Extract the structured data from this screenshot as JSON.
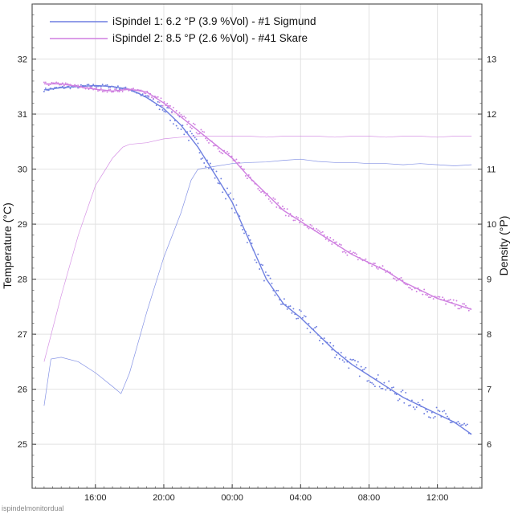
{
  "chart_data": {
    "type": "line",
    "x_unit": "hours",
    "x_ticks": [
      {
        "value": 16,
        "label": "16:00"
      },
      {
        "value": 20,
        "label": "20:00"
      },
      {
        "value": 24,
        "label": "00:00"
      },
      {
        "value": 28,
        "label": "04:00"
      },
      {
        "value": 32,
        "label": "08:00"
      },
      {
        "value": 36,
        "label": "12:00"
      }
    ],
    "xlim": [
      12.3,
      38.6
    ],
    "left_axis": {
      "label": "Temperature (°C)",
      "ylim": [
        24.2,
        33.0
      ],
      "ticks": [
        25,
        26,
        27,
        28,
        29,
        30,
        31,
        32
      ]
    },
    "right_axis": {
      "label": "Density (°P)",
      "ylim": [
        5.2,
        14.0
      ],
      "ticks": [
        6,
        7,
        8,
        9,
        10,
        11,
        12,
        13
      ]
    },
    "grid": true,
    "legend_position": "top-left",
    "series": [
      {
        "name": "iSpindel 1: 6.2 °P (3.9 %Vol) - #1 Sigmund",
        "color": "#6e7fe0",
        "temperature": [
          [
            13.0,
            31.44
          ],
          [
            14.0,
            31.48
          ],
          [
            15.0,
            31.5
          ],
          [
            16.0,
            31.52
          ],
          [
            17.0,
            31.5
          ],
          [
            18.0,
            31.45
          ],
          [
            18.5,
            31.38
          ],
          [
            19.0,
            31.3
          ],
          [
            20.0,
            31.1
          ],
          [
            21.0,
            30.8
          ],
          [
            22.0,
            30.4
          ],
          [
            23.0,
            29.9
          ],
          [
            24.0,
            29.4
          ],
          [
            25.0,
            28.7
          ],
          [
            26.0,
            28.0
          ],
          [
            27.0,
            27.55
          ],
          [
            28.0,
            27.3
          ],
          [
            29.0,
            27.0
          ],
          [
            30.0,
            26.7
          ],
          [
            31.0,
            26.45
          ],
          [
            32.0,
            26.25
          ],
          [
            33.0,
            26.05
          ],
          [
            34.0,
            25.85
          ],
          [
            35.0,
            25.7
          ],
          [
            36.0,
            25.55
          ],
          [
            37.0,
            25.4
          ],
          [
            38.0,
            25.18
          ]
        ],
        "density": [
          [
            13.0,
            6.7
          ],
          [
            13.4,
            7.55
          ],
          [
            14.0,
            7.58
          ],
          [
            15.0,
            7.5
          ],
          [
            16.0,
            7.3
          ],
          [
            17.0,
            7.05
          ],
          [
            17.5,
            6.92
          ],
          [
            18.0,
            7.3
          ],
          [
            19.0,
            8.4
          ],
          [
            20.0,
            9.4
          ],
          [
            21.0,
            10.2
          ],
          [
            21.6,
            10.8
          ],
          [
            22.0,
            11.0
          ],
          [
            23.0,
            11.05
          ],
          [
            24.0,
            11.1
          ],
          [
            25.0,
            11.12
          ],
          [
            26.0,
            11.13
          ],
          [
            27.0,
            11.16
          ],
          [
            28.0,
            11.18
          ],
          [
            29.0,
            11.14
          ],
          [
            30.0,
            11.12
          ],
          [
            31.0,
            11.12
          ],
          [
            32.0,
            11.1
          ],
          [
            33.0,
            11.1
          ],
          [
            34.0,
            11.08
          ],
          [
            35.0,
            11.1
          ],
          [
            36.0,
            11.08
          ],
          [
            37.0,
            11.06
          ],
          [
            38.0,
            11.08
          ]
        ]
      },
      {
        "name": "iSpindel 2: 8.5 °P (2.6 %Vol) - #41 Skare",
        "color": "#cf7fe0",
        "temperature": [
          [
            13.0,
            31.55
          ],
          [
            14.0,
            31.55
          ],
          [
            15.0,
            31.5
          ],
          [
            16.0,
            31.45
          ],
          [
            17.0,
            31.42
          ],
          [
            18.0,
            31.45
          ],
          [
            19.0,
            31.4
          ],
          [
            20.0,
            31.2
          ],
          [
            21.0,
            30.95
          ],
          [
            22.0,
            30.7
          ],
          [
            23.0,
            30.45
          ],
          [
            24.0,
            30.2
          ],
          [
            25.0,
            29.85
          ],
          [
            26.0,
            29.55
          ],
          [
            27.0,
            29.25
          ],
          [
            28.0,
            29.05
          ],
          [
            29.0,
            28.85
          ],
          [
            30.0,
            28.65
          ],
          [
            31.0,
            28.45
          ],
          [
            32.0,
            28.3
          ],
          [
            33.0,
            28.15
          ],
          [
            34.0,
            27.95
          ],
          [
            35.0,
            27.8
          ],
          [
            36.0,
            27.65
          ],
          [
            37.0,
            27.55
          ],
          [
            38.0,
            27.45
          ]
        ],
        "density": [
          [
            13.0,
            7.5
          ],
          [
            14.0,
            8.7
          ],
          [
            15.0,
            9.8
          ],
          [
            16.0,
            10.7
          ],
          [
            17.0,
            11.2
          ],
          [
            17.6,
            11.4
          ],
          [
            18.0,
            11.45
          ],
          [
            19.0,
            11.48
          ],
          [
            20.0,
            11.55
          ],
          [
            21.0,
            11.58
          ],
          [
            22.0,
            11.6
          ],
          [
            23.0,
            11.6
          ],
          [
            24.0,
            11.6
          ],
          [
            25.0,
            11.6
          ],
          [
            26.0,
            11.58
          ],
          [
            27.0,
            11.6
          ],
          [
            28.0,
            11.6
          ],
          [
            29.0,
            11.6
          ],
          [
            30.0,
            11.58
          ],
          [
            31.0,
            11.6
          ],
          [
            32.0,
            11.6
          ],
          [
            33.0,
            11.58
          ],
          [
            34.0,
            11.6
          ],
          [
            35.0,
            11.6
          ],
          [
            36.0,
            11.58
          ],
          [
            37.0,
            11.6
          ],
          [
            38.0,
            11.6
          ]
        ]
      }
    ]
  },
  "watermark": "ispindelmonitordual"
}
